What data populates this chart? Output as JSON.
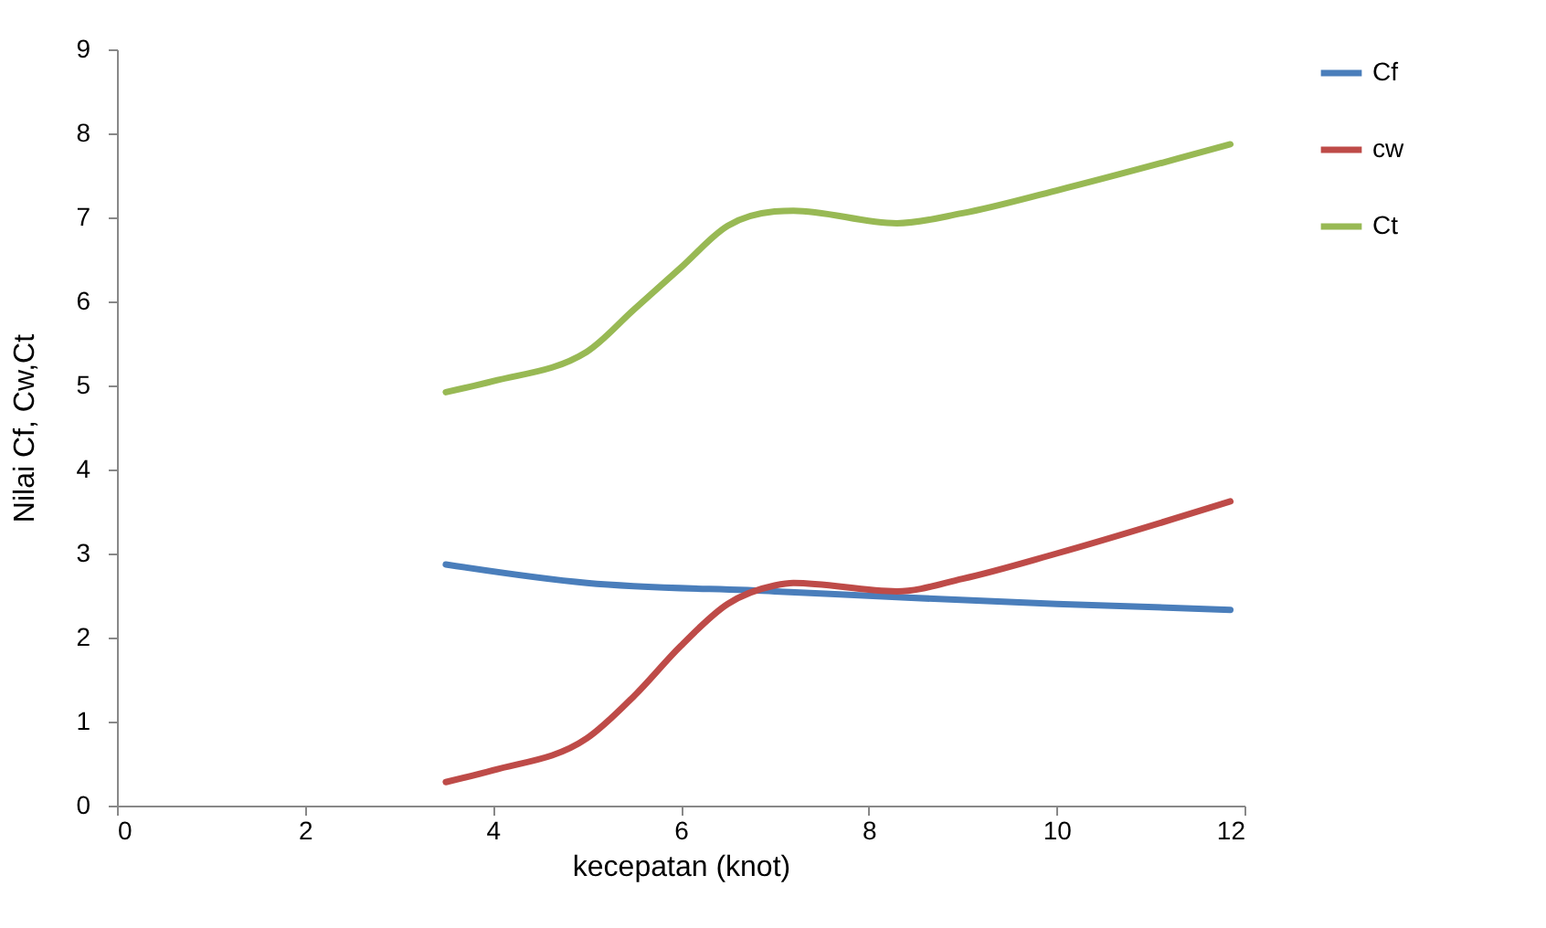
{
  "chart_data": {
    "type": "line",
    "xlabel": "kecepatan (knot)",
    "ylabel": "Nilai Cf, Cw,Ct",
    "xlim": [
      0,
      12
    ],
    "xticks": [
      0,
      2,
      4,
      6,
      8,
      10,
      12
    ],
    "ylim": [
      0,
      9
    ],
    "yticks": [
      0,
      1,
      2,
      3,
      4,
      5,
      6,
      7,
      8,
      9
    ],
    "grid": false,
    "legend": "right",
    "marker": "none",
    "line_style": "solid",
    "series": [
      {
        "name": "Cf",
        "color": "#4a7ebb",
        "x": [
          3.5,
          5,
          7,
          8.3,
          10,
          11.85
        ],
        "values": [
          2.87,
          2.65,
          2.55,
          2.48,
          2.4,
          2.33
        ]
      },
      {
        "name": "cw",
        "color": "#be4b48",
        "x": [
          3.5,
          4,
          5,
          5.5,
          6,
          6.5,
          7,
          7.2,
          8.3,
          9,
          10,
          11.85
        ],
        "values": [
          0.28,
          0.42,
          0.8,
          1.3,
          1.9,
          2.4,
          2.62,
          2.65,
          2.55,
          2.7,
          3.0,
          3.62
        ]
      },
      {
        "name": "Ct",
        "color": "#98b954",
        "x": [
          3.5,
          4,
          5,
          5.5,
          6,
          6.5,
          7,
          7.2,
          8.3,
          9,
          10,
          11.85
        ],
        "values": [
          4.92,
          5.05,
          5.4,
          5.9,
          6.4,
          6.9,
          7.07,
          7.08,
          6.93,
          7.05,
          7.32,
          7.87
        ]
      }
    ]
  }
}
